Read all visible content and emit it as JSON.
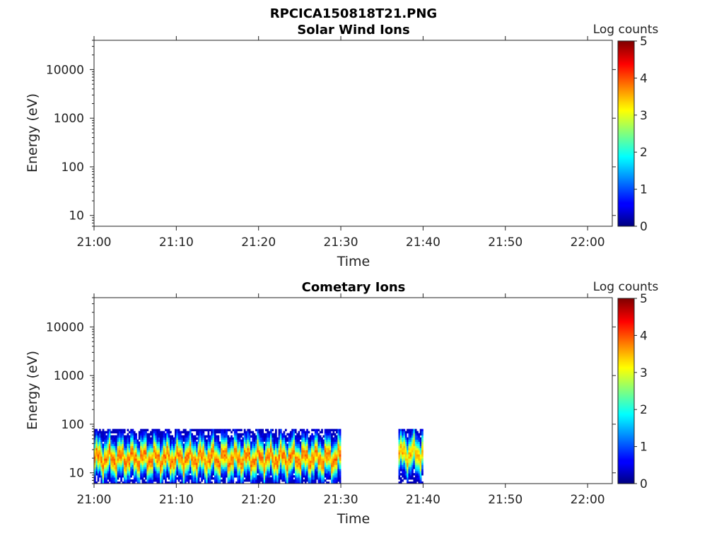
{
  "figure_title": "RPCICA150818T21.PNG",
  "chart_data": [
    {
      "type": "heatmap",
      "title": "Solar Wind Ions",
      "xlabel": "Time",
      "ylabel": "Energy (eV)",
      "x_ticks": [
        "21:00",
        "21:10",
        "21:20",
        "21:30",
        "21:40",
        "21:50",
        "22:00"
      ],
      "x_range_minutes": [
        0,
        63
      ],
      "y_scale": "log",
      "y_ticks": [
        "10",
        "100",
        "1000",
        "10000"
      ],
      "y_range": [
        6,
        40000
      ],
      "colorbar_label": "Log counts",
      "colorbar_ticks": [
        "0",
        "1",
        "2",
        "3",
        "4",
        "5"
      ],
      "colorbar_range": [
        0,
        5
      ],
      "colormap": "jet",
      "data": []
    },
    {
      "type": "heatmap",
      "title": "Cometary Ions",
      "xlabel": "Time",
      "ylabel": "Energy (eV)",
      "x_ticks": [
        "21:00",
        "21:10",
        "21:20",
        "21:30",
        "21:40",
        "21:50",
        "22:00"
      ],
      "x_range_minutes": [
        0,
        63
      ],
      "y_scale": "log",
      "y_ticks": [
        "10",
        "100",
        "1000",
        "10000"
      ],
      "y_range": [
        6,
        40000
      ],
      "colorbar_label": "Log counts",
      "colorbar_ticks": [
        "0",
        "1",
        "2",
        "3",
        "4",
        "5"
      ],
      "colorbar_range": [
        0,
        5
      ],
      "colormap": "jet",
      "data_intervals": [
        {
          "start_time": "21:00",
          "end_time": "21:30",
          "energy_range_eV": [
            6,
            80
          ],
          "peak_energy_eV": 20,
          "peak_log_counts": 3.8
        },
        {
          "start_time": "21:37",
          "end_time": "21:40",
          "energy_range_eV": [
            6,
            80
          ],
          "peak_energy_eV": 25,
          "peak_log_counts": 3.5
        }
      ]
    }
  ]
}
